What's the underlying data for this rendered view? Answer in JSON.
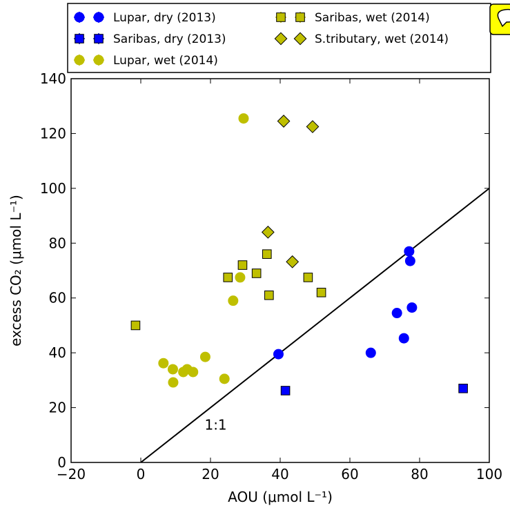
{
  "chart_data": {
    "type": "scatter",
    "xlabel": "AOU (μmol L⁻¹)",
    "ylabel": "excess CO₂ (μmol L⁻¹)",
    "xlim": [
      -20,
      100
    ],
    "ylim": [
      0,
      140
    ],
    "x_ticks": [
      "−20",
      "0",
      "20",
      "40",
      "60",
      "80",
      "100"
    ],
    "y_ticks": [
      "0",
      "20",
      "40",
      "60",
      "80",
      "100",
      "120",
      "140"
    ],
    "grid": false,
    "legend_position": "top",
    "series": [
      {
        "name": "Lupar, dry (2013)",
        "marker": "circle",
        "color": "#0000ff",
        "points": [
          [
            39.5,
            39.5
          ],
          [
            66,
            40
          ],
          [
            73.5,
            54.5
          ],
          [
            75.5,
            45.3
          ],
          [
            77,
            77
          ],
          [
            77.3,
            73.5
          ],
          [
            77.8,
            56.5
          ]
        ]
      },
      {
        "name": "Saribas, dry (2013)",
        "marker": "square",
        "color": "#0000ff",
        "points": [
          [
            41.5,
            26.2
          ],
          [
            92.5,
            27
          ]
        ]
      },
      {
        "name": "Lupar, wet (2014)",
        "marker": "circle",
        "color": "#bfbf00",
        "points": [
          [
            6.5,
            36.2
          ],
          [
            9.2,
            34
          ],
          [
            9.3,
            29.2
          ],
          [
            12.2,
            33
          ],
          [
            13.3,
            34
          ],
          [
            15,
            33
          ],
          [
            18.5,
            38.5
          ],
          [
            24,
            30.5
          ],
          [
            26.5,
            59
          ],
          [
            28.5,
            67.5
          ],
          [
            29.5,
            125.5
          ]
        ]
      },
      {
        "name": "Saribas, wet (2014)",
        "marker": "square",
        "color": "#bfbf00",
        "points": [
          [
            -1.5,
            50
          ],
          [
            25,
            67.5
          ],
          [
            29.2,
            72
          ],
          [
            33.2,
            69
          ],
          [
            36.2,
            76
          ],
          [
            36.8,
            61
          ],
          [
            48,
            67.5
          ],
          [
            51.8,
            62
          ]
        ]
      },
      {
        "name": "S.tributary, wet (2014)",
        "marker": "diamond",
        "color": "#bfbf00",
        "points": [
          [
            41,
            124.5
          ],
          [
            49.3,
            122.5
          ],
          [
            36.5,
            84
          ],
          [
            43.5,
            73.2
          ]
        ]
      }
    ],
    "reference_line": {
      "label": "1:1",
      "points": [
        [
          0,
          0
        ],
        [
          100,
          100
        ]
      ]
    },
    "annotations": [
      {
        "text": "1:1",
        "x": 21.5,
        "y": 12
      }
    ]
  }
}
